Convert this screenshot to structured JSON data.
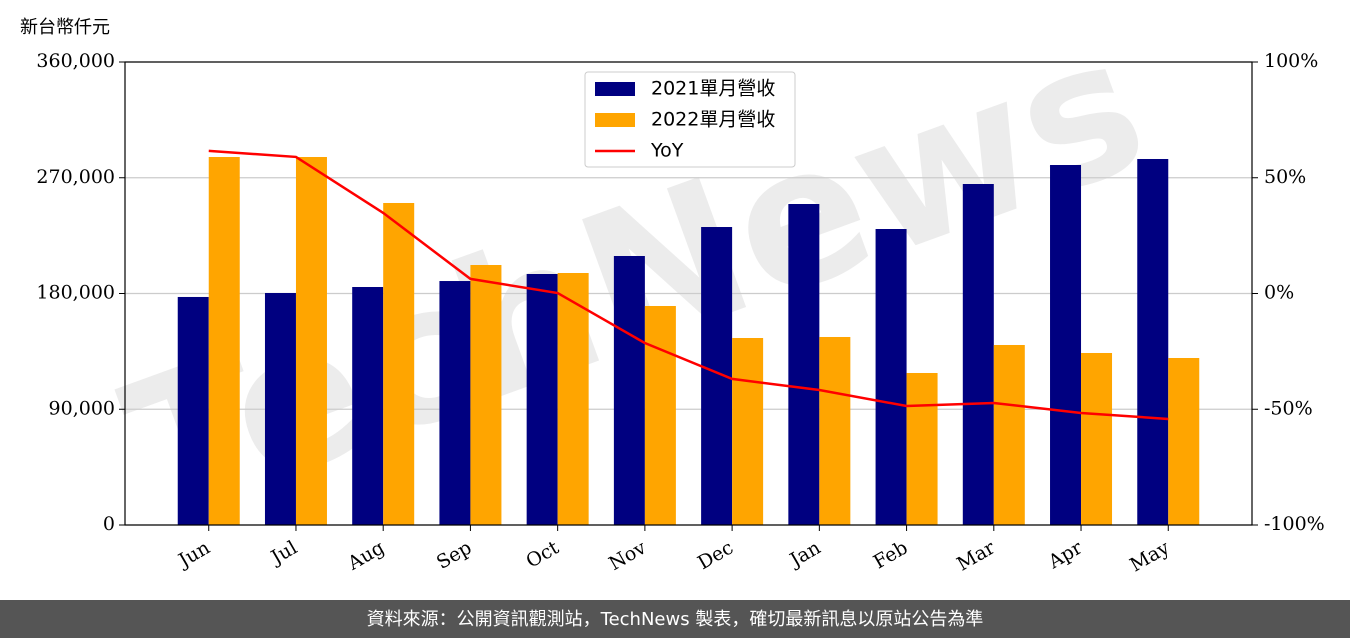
{
  "chart_data": {
    "type": "bar_line",
    "y_label": "新台幣仟元",
    "watermark": "TechNews",
    "footer": "資料來源：公開資訊觀測站，TechNews 製表，確切最新訊息以原站公告為準",
    "categories": [
      "Jun",
      "Jul",
      "Aug",
      "Sep",
      "Oct",
      "Nov",
      "Dec",
      "Jan",
      "Feb",
      "Mar",
      "Apr",
      "May"
    ],
    "series": [
      {
        "name": "2021單月營收",
        "color": "#000080",
        "type": "bar",
        "values": [
          177300,
          180400,
          185050,
          189700,
          195160,
          209160,
          231700,
          249590,
          230150,
          265140,
          279910,
          284580
        ]
      },
      {
        "name": "2022單月營收",
        "color": "#ffa500",
        "type": "bar",
        "values": [
          286130,
          286130,
          250370,
          202160,
          195940,
          170280,
          145400,
          146180,
          118190,
          139960,
          133740,
          129850
        ]
      },
      {
        "name": "YoY",
        "color": "#ff0000",
        "type": "line",
        "axis": "y2",
        "values": [
          61.6,
          59,
          34.8,
          6.3,
          0.2,
          -21.4,
          -36.9,
          -41.7,
          -48.6,
          -47.3,
          -51.6,
          -54.2
        ]
      }
    ],
    "ylim": [
      0,
      360000
    ],
    "yticks": [
      0,
      {
        "value": 90000,
        "label": "90,000"
      },
      {
        "value": 180000,
        "label": "180,000"
      },
      {
        "value": 270000,
        "label": "270,000"
      },
      {
        "value": 360000,
        "label": "360,000"
      }
    ],
    "y2lim": [
      -100,
      100
    ],
    "y2ticks": [
      {
        "value": -100,
        "label": "-100%"
      },
      {
        "value": -50,
        "label": "-50%"
      },
      {
        "value": 0,
        "label": "0%"
      },
      {
        "value": 50,
        "label": "50%"
      },
      {
        "value": 100,
        "label": "100%"
      }
    ],
    "grid": true,
    "legend": "top-center"
  }
}
